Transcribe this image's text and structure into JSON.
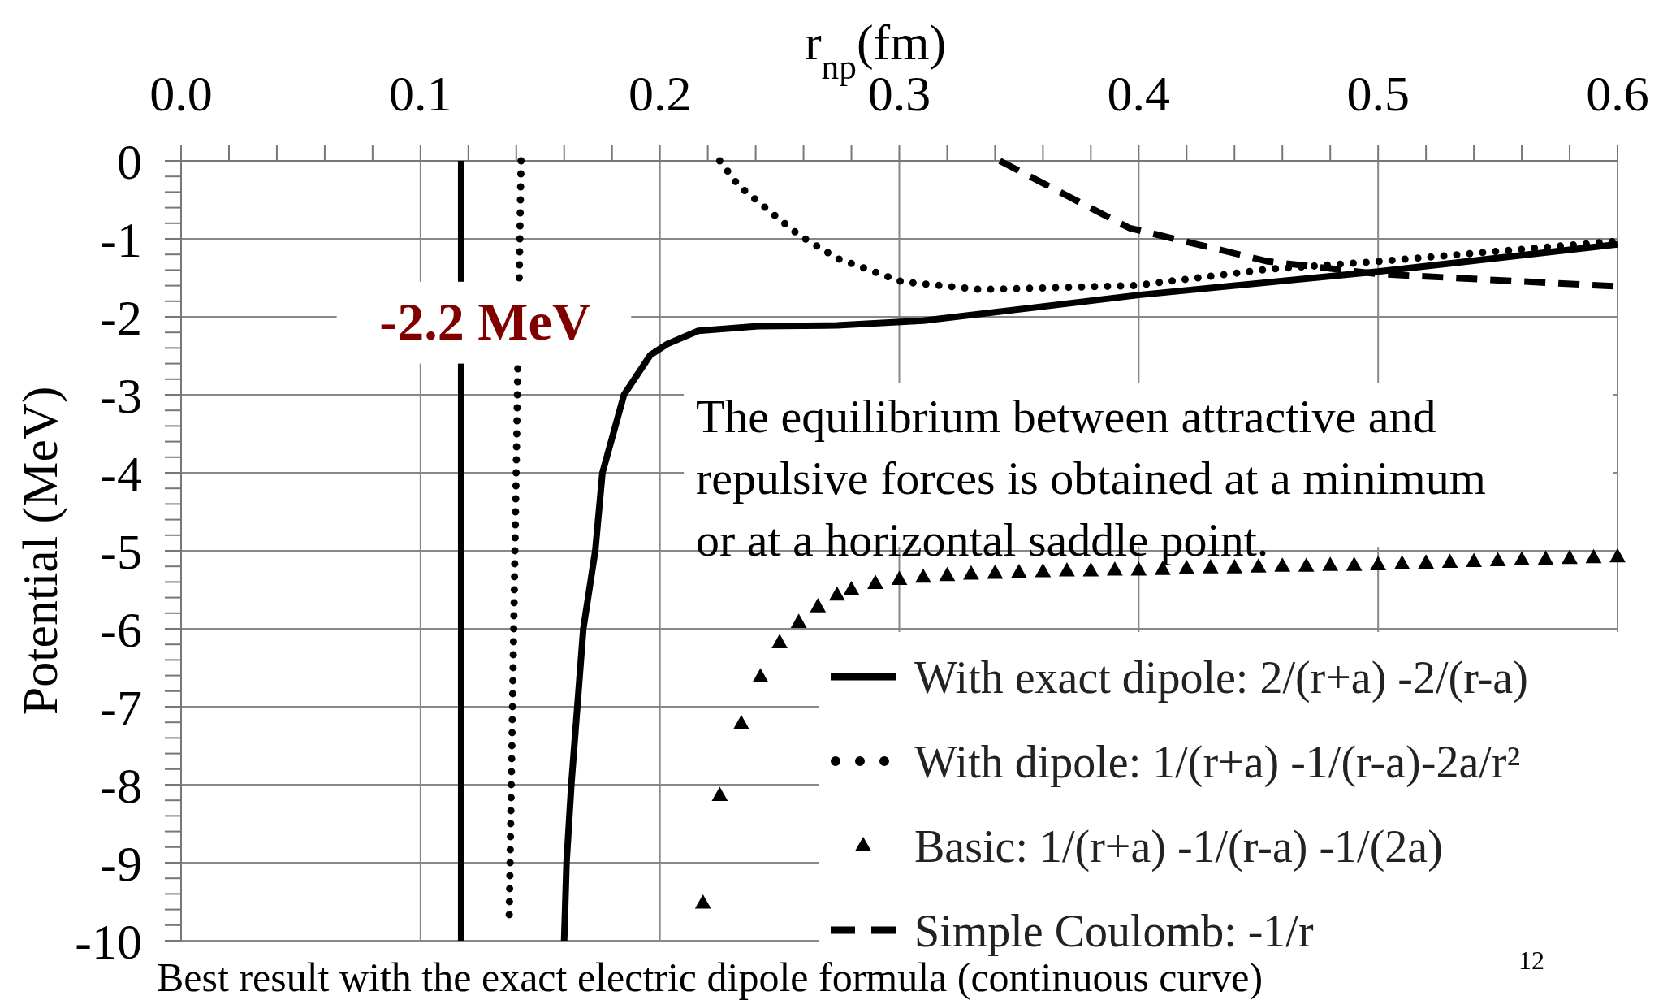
{
  "chart_data": {
    "type": "line",
    "xlabel": "r$_{np}$(fm)",
    "ylabel": "Potential (MeV)",
    "xlim": [
      0,
      0.6
    ],
    "ylim": [
      -10,
      0
    ],
    "xticks": [
      {
        "value": 0,
        "label": "0.0"
      },
      {
        "value": 0.1,
        "label": "0.1"
      },
      {
        "value": 0.2,
        "label": "0.2"
      },
      {
        "value": 0.3,
        "label": "0.3"
      },
      {
        "value": 0.4,
        "label": "0.4"
      },
      {
        "value": 0.5,
        "label": "0.5"
      },
      {
        "value": 0.6,
        "label": "0.6"
      }
    ],
    "yticks": [
      0,
      -1,
      -2,
      -3,
      -4,
      -5,
      -6,
      -7,
      -8,
      -9,
      -10
    ],
    "grid": true,
    "legend": "bottom right",
    "series": [
      {
        "name": "With exact dipole: 2/(r+a) -2/(r-a)",
        "color": "#000000",
        "line_style": "solid",
        "x": [
          0.117,
          0.117,
          0.14,
          0.16,
          0.161,
          0.163,
          0.1655,
          0.168,
          0.173,
          0.176,
          0.185,
          0.196,
          0.203,
          0.216,
          0.241,
          0.274,
          0.31,
          0.4,
          0.5,
          0.6
        ],
        "values": [
          0,
          -10,
          null,
          -10,
          -9,
          -8,
          -7,
          -6,
          -5,
          -4,
          -3,
          -2.49,
          -2.35,
          -2.18,
          -2.12,
          -2.11,
          -2.05,
          -1.72,
          -1.42,
          -1.07
        ]
      },
      {
        "name": "With dipole: 1/(r+a) -1/(r-a)-2a/r²",
        "color": "#000000",
        "line_style": "dotted",
        "x": [
          0.142,
          0.137,
          0.18,
          0.225,
          0.233,
          0.25,
          0.258,
          0.274,
          0.301,
          0.334,
          0.398,
          0.454,
          0.5,
          0.6
        ],
        "values": [
          0,
          -9.8,
          null,
          0,
          -0.32,
          -0.75,
          -0.95,
          -1.25,
          -1.55,
          -1.65,
          -1.6,
          -1.39,
          -1.29,
          -1.03
        ]
      },
      {
        "name": "Basic: 1/(r+a) -1/(r-a) -1/(2a)",
        "color": "#000000",
        "type": "scatter",
        "marker": "triangle",
        "x": [
          0.218,
          0.225,
          0.234,
          0.242,
          0.25,
          0.258,
          0.266,
          0.274,
          0.28,
          0.29,
          0.3,
          0.31,
          0.32,
          0.33,
          0.34,
          0.35,
          0.36,
          0.37,
          0.38,
          0.39,
          0.4,
          0.41,
          0.42,
          0.43,
          0.44,
          0.45,
          0.46,
          0.47,
          0.48,
          0.49,
          0.5,
          0.51,
          0.52,
          0.53,
          0.54,
          0.55,
          0.56,
          0.57,
          0.58,
          0.59,
          0.6
        ],
        "values": [
          -9.52,
          -8.14,
          -7.22,
          -6.62,
          -6.18,
          -5.92,
          -5.72,
          -5.57,
          -5.5,
          -5.42,
          -5.37,
          -5.34,
          -5.32,
          -5.3,
          -5.29,
          -5.28,
          -5.27,
          -5.26,
          -5.26,
          -5.25,
          -5.25,
          -5.24,
          -5.23,
          -5.22,
          -5.22,
          -5.21,
          -5.2,
          -5.2,
          -5.19,
          -5.19,
          -5.18,
          -5.17,
          -5.16,
          -5.15,
          -5.14,
          -5.13,
          -5.12,
          -5.11,
          -5.1,
          -5.09,
          -5.08
        ]
      },
      {
        "name": "Simple Coulomb: -1/r",
        "color": "#000000",
        "line_style": "dashed",
        "x": [
          0.342,
          0.369,
          0.396,
          0.454,
          0.5,
          0.6
        ],
        "values": [
          0,
          -0.43,
          -0.86,
          -1.29,
          -1.45,
          -1.61
        ]
      }
    ],
    "annotations": [
      "-2.2 MeV",
      "The equilibrium between attractive and repulsive forces is obtained at a minimum or at a horizontal saddle point.",
      "Best result with the exact electric dipole formula (continuous curve)",
      "12"
    ]
  }
}
